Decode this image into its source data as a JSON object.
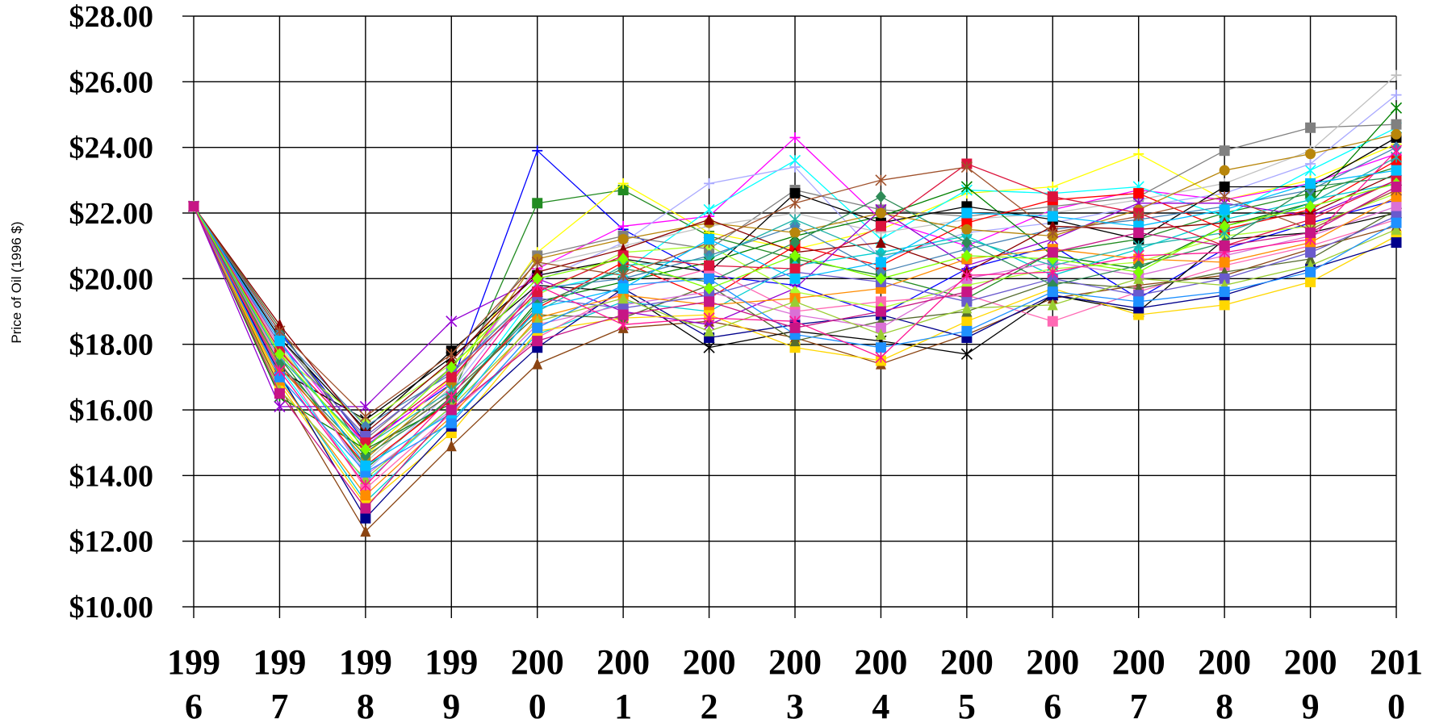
{
  "chart_data": {
    "type": "line",
    "title": "",
    "ylabel": "Price of Oil (1996 $)",
    "xlabel": "",
    "ylim": [
      10,
      28
    ],
    "yticks": [
      10,
      12,
      14,
      16,
      18,
      20,
      22,
      24,
      26,
      28
    ],
    "ytick_labels": [
      "$10.00",
      "$12.00",
      "$14.00",
      "$16.00",
      "$18.00",
      "$20.00",
      "$22.00",
      "$24.00",
      "$26.00",
      "$28.00"
    ],
    "x": [
      1996,
      1997,
      1998,
      1999,
      2000,
      2001,
      2002,
      2003,
      2004,
      2005,
      2006,
      2007,
      2008,
      2009,
      2010
    ],
    "xtick_labels": [
      [
        "199",
        "6"
      ],
      [
        "199",
        "7"
      ],
      [
        "199",
        "8"
      ],
      [
        "199",
        "9"
      ],
      [
        "200",
        "0"
      ],
      [
        "200",
        "1"
      ],
      [
        "200",
        "2"
      ],
      [
        "200",
        "3"
      ],
      [
        "200",
        "4"
      ],
      [
        "200",
        "5"
      ],
      [
        "200",
        "6"
      ],
      [
        "200",
        "7"
      ],
      [
        "200",
        "8"
      ],
      [
        "200",
        "9"
      ],
      [
        "201",
        "0"
      ]
    ],
    "grid": true,
    "legend": "none",
    "series": [
      {
        "color": "#0000ff",
        "marker": "plus",
        "values": [
          22.2,
          18.4,
          15.0,
          16.8,
          23.9,
          21.5,
          20.1,
          19.8,
          18.9,
          20.3,
          21.0,
          19.4,
          20.9,
          21.7,
          22.4
        ]
      },
      {
        "color": "#228b22",
        "marker": "square",
        "values": [
          22.2,
          17.6,
          14.2,
          16.4,
          22.3,
          22.7,
          21.3,
          20.6,
          20.1,
          19.4,
          20.8,
          21.2,
          22.0,
          22.6,
          23.4
        ]
      },
      {
        "color": "#ffff00",
        "marker": "plus",
        "values": [
          22.2,
          17.9,
          14.6,
          17.0,
          20.8,
          22.9,
          21.4,
          20.9,
          21.5,
          22.6,
          22.8,
          23.8,
          22.4,
          23.0,
          24.1
        ]
      },
      {
        "color": "#ff00ff",
        "marker": "plus",
        "values": [
          22.2,
          18.1,
          14.9,
          16.9,
          20.3,
          21.6,
          21.9,
          24.3,
          21.8,
          21.0,
          22.1,
          22.7,
          22.4,
          22.9,
          23.8
        ]
      },
      {
        "color": "#00ffff",
        "marker": "star",
        "values": [
          22.2,
          17.3,
          13.8,
          16.1,
          19.6,
          20.2,
          22.1,
          23.6,
          21.2,
          22.7,
          22.6,
          22.8,
          21.9,
          23.3,
          24.6
        ]
      },
      {
        "color": "#aaaaff",
        "marker": "plus",
        "values": [
          22.2,
          17.8,
          14.1,
          16.6,
          19.9,
          21.1,
          22.9,
          23.4,
          20.6,
          21.4,
          21.7,
          22.2,
          22.6,
          23.5,
          25.6
        ]
      },
      {
        "color": "#808080",
        "marker": "square",
        "values": [
          22.2,
          18.2,
          15.1,
          17.3,
          20.7,
          21.3,
          20.9,
          22.7,
          22.1,
          21.9,
          22.2,
          22.5,
          23.9,
          24.6,
          24.7
        ]
      },
      {
        "color": "#c0c0c0",
        "marker": "plus",
        "values": [
          22.2,
          18.0,
          14.4,
          16.7,
          20.4,
          21.0,
          21.6,
          22.0,
          21.4,
          21.8,
          22.0,
          22.4,
          22.9,
          23.9,
          26.2
        ]
      },
      {
        "color": "#8b4513",
        "marker": "triangle",
        "values": [
          22.2,
          16.7,
          12.3,
          14.9,
          17.4,
          18.5,
          18.7,
          18.2,
          17.4,
          18.3,
          19.4,
          19.8,
          20.1,
          20.9,
          21.6
        ]
      },
      {
        "color": "#008000",
        "marker": "star",
        "values": [
          22.2,
          16.4,
          14.8,
          16.2,
          19.3,
          19.9,
          20.5,
          21.3,
          21.9,
          22.8,
          20.7,
          20.3,
          21.6,
          22.3,
          25.2
        ]
      },
      {
        "color": "#000000",
        "marker": "square",
        "values": [
          22.2,
          18.2,
          15.4,
          17.8,
          20.1,
          20.6,
          20.2,
          22.6,
          21.7,
          22.2,
          21.8,
          21.2,
          22.8,
          22.8,
          24.3
        ]
      },
      {
        "color": "#000000",
        "marker": "star",
        "values": [
          22.2,
          17.2,
          15.7,
          17.6,
          19.8,
          19.6,
          17.9,
          18.4,
          18.1,
          17.7,
          19.5,
          19.0,
          21.2,
          21.4,
          22.0
        ]
      },
      {
        "color": "#ff0000",
        "marker": "square",
        "values": [
          22.2,
          17.4,
          14.3,
          16.3,
          19.1,
          20.5,
          19.4,
          21.0,
          20.4,
          21.7,
          22.4,
          22.6,
          21.5,
          22.1,
          23.6
        ]
      },
      {
        "color": "#00ced1",
        "marker": "diamond",
        "values": [
          22.2,
          17.0,
          13.2,
          15.7,
          18.3,
          19.3,
          19.0,
          20.4,
          20.8,
          21.3,
          20.1,
          20.9,
          21.8,
          22.4,
          22.9
        ]
      },
      {
        "color": "#ff69b4",
        "marker": "square",
        "values": [
          22.2,
          17.5,
          13.6,
          15.9,
          18.2,
          19.6,
          20.3,
          19.0,
          19.3,
          19.5,
          18.7,
          19.6,
          20.4,
          21.0,
          21.8
        ]
      },
      {
        "color": "#9400d3",
        "marker": "star",
        "values": [
          22.2,
          16.1,
          16.1,
          18.7,
          20.0,
          19.0,
          18.6,
          19.7,
          22.1,
          20.4,
          21.2,
          22.3,
          22.3,
          21.9,
          23.0
        ]
      },
      {
        "color": "#ffd700",
        "marker": "square",
        "values": [
          22.2,
          16.8,
          13.1,
          15.3,
          18.4,
          18.8,
          18.9,
          17.9,
          17.5,
          18.7,
          19.7,
          18.9,
          19.2,
          19.9,
          21.3
        ]
      },
      {
        "color": "#00008b",
        "marker": "square",
        "values": [
          22.2,
          17.1,
          12.7,
          15.5,
          17.9,
          19.7,
          18.2,
          18.6,
          18.9,
          18.2,
          19.5,
          19.1,
          19.5,
          20.3,
          21.1
        ]
      },
      {
        "color": "#adff2f",
        "marker": "diamond",
        "values": [
          22.2,
          17.7,
          15.6,
          17.4,
          19.5,
          20.8,
          21.0,
          19.6,
          19.1,
          19.8,
          20.3,
          20.5,
          21.3,
          21.6,
          22.6
        ]
      },
      {
        "color": "#556b2f",
        "marker": "triangle",
        "values": [
          22.2,
          18.5,
          14.7,
          16.5,
          18.9,
          18.8,
          19.8,
          18.1,
          18.7,
          19.0,
          19.9,
          19.7,
          20.2,
          20.6,
          22.1
        ]
      },
      {
        "color": "#da70d6",
        "marker": "square",
        "values": [
          22.2,
          17.9,
          14.0,
          16.0,
          18.6,
          19.2,
          19.6,
          18.9,
          18.5,
          20.0,
          20.5,
          20.1,
          20.7,
          21.3,
          22.2
        ]
      },
      {
        "color": "#4682b4",
        "marker": "diamond",
        "values": [
          22.2,
          18.3,
          15.5,
          17.1,
          19.7,
          20.0,
          20.7,
          21.6,
          20.2,
          20.9,
          21.5,
          21.8,
          22.2,
          22.7,
          24.0
        ]
      },
      {
        "color": "#b8860b",
        "marker": "circle",
        "values": [
          22.2,
          17.3,
          14.5,
          16.8,
          20.6,
          21.2,
          21.7,
          21.4,
          22.0,
          21.5,
          21.3,
          22.1,
          23.3,
          23.8,
          24.4
        ]
      },
      {
        "color": "#ff8c00",
        "marker": "square",
        "values": [
          22.2,
          16.9,
          13.4,
          15.8,
          18.8,
          19.5,
          19.2,
          19.4,
          19.7,
          20.6,
          20.9,
          20.6,
          20.5,
          21.1,
          22.5
        ]
      },
      {
        "color": "#8b0000",
        "marker": "triangle",
        "values": [
          22.2,
          18.6,
          15.3,
          17.5,
          20.2,
          20.9,
          21.8,
          20.8,
          21.1,
          20.2,
          21.6,
          21.5,
          21.7,
          22.0,
          23.2
        ]
      },
      {
        "color": "#20b2aa",
        "marker": "star",
        "values": [
          22.2,
          17.6,
          14.9,
          16.6,
          19.0,
          20.4,
          20.6,
          21.8,
          20.7,
          21.2,
          20.4,
          21.0,
          21.4,
          22.3,
          23.7
        ]
      },
      {
        "color": "#6a5acd",
        "marker": "square",
        "values": [
          22.2,
          18.0,
          15.2,
          17.2,
          19.4,
          19.1,
          19.5,
          20.2,
          19.9,
          19.3,
          20.0,
          19.5,
          20.0,
          20.8,
          21.9
        ]
      },
      {
        "color": "#2e8b57",
        "marker": "diamond",
        "values": [
          22.2,
          17.4,
          14.6,
          16.3,
          19.2,
          20.3,
          19.9,
          21.1,
          22.5,
          21.1,
          19.8,
          20.4,
          21.1,
          22.8,
          23.1
        ]
      },
      {
        "color": "#dc143c",
        "marker": "square",
        "values": [
          22.2,
          17.8,
          15.0,
          17.0,
          19.6,
          20.7,
          20.4,
          20.3,
          21.6,
          23.5,
          22.5,
          22.0,
          21.0,
          21.8,
          23.0
        ]
      },
      {
        "color": "#9acd32",
        "marker": "triangle",
        "values": [
          22.2,
          16.6,
          13.9,
          16.1,
          18.7,
          19.4,
          18.4,
          19.3,
          18.3,
          19.1,
          19.2,
          20.0,
          19.8,
          20.4,
          21.5
        ]
      },
      {
        "color": "#1e90ff",
        "marker": "square",
        "values": [
          22.2,
          17.0,
          14.1,
          15.6,
          18.5,
          19.8,
          20.0,
          18.3,
          17.9,
          18.4,
          19.6,
          19.3,
          19.6,
          20.2,
          21.7
        ]
      },
      {
        "color": "#a0522d",
        "marker": "star",
        "values": [
          22.2,
          18.4,
          15.8,
          17.7,
          20.5,
          20.1,
          21.1,
          22.3,
          23.0,
          23.4,
          21.4,
          21.9,
          22.5,
          21.5,
          22.7
        ]
      },
      {
        "color": "#ff1493",
        "marker": "star",
        "values": [
          22.2,
          17.2,
          13.7,
          16.4,
          19.8,
          18.6,
          18.8,
          18.7,
          17.6,
          20.1,
          20.2,
          20.7,
          20.8,
          21.2,
          23.9
        ]
      },
      {
        "color": "#00bfff",
        "marker": "square",
        "values": [
          22.2,
          18.1,
          14.3,
          15.9,
          19.1,
          19.7,
          21.2,
          20.0,
          20.5,
          22.0,
          21.9,
          21.6,
          22.1,
          22.9,
          23.3
        ]
      },
      {
        "color": "#7fff00",
        "marker": "diamond",
        "values": [
          22.2,
          17.7,
          14.8,
          17.3,
          20.0,
          20.6,
          19.7,
          20.7,
          20.0,
          20.7,
          20.6,
          20.2,
          21.6,
          22.2,
          22.9
        ]
      },
      {
        "color": "#c71585",
        "marker": "square",
        "values": [
          22.2,
          16.5,
          13.0,
          16.0,
          18.1,
          18.9,
          19.3,
          18.5,
          19.0,
          19.6,
          20.8,
          21.4,
          21.0,
          21.4,
          22.8
        ]
      }
    ]
  }
}
